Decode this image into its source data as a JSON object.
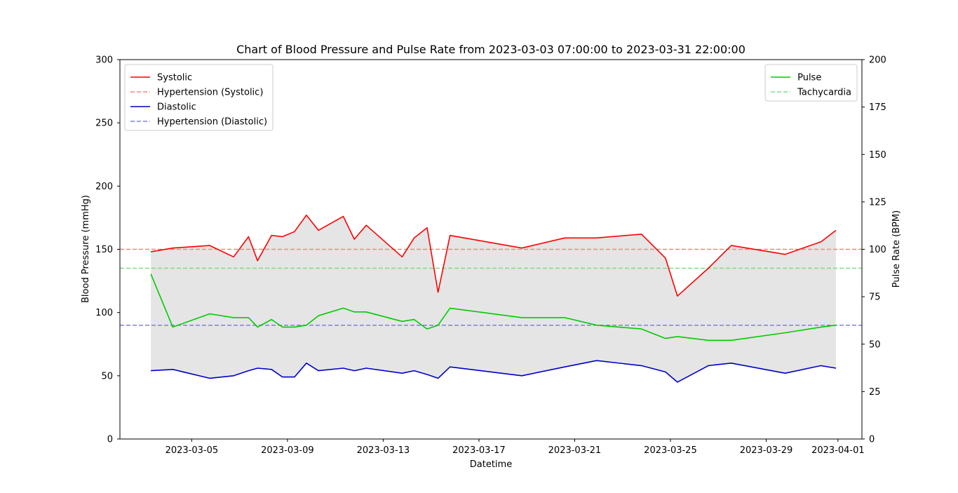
{
  "chart_data": {
    "type": "line",
    "title": "Chart of Blood Pressure and Pulse Rate from 2023-03-03 07:00:00 to 2023-03-31 22:00:00",
    "xlabel": "Datetime",
    "ylabel_left": "Blood Pressure (mmHg)",
    "ylabel_right": "Pulse Rate (BPM)",
    "x_range": [
      "2023-03-02T00:00",
      "2023-04-02T00:00"
    ],
    "y_left_lim": [
      0,
      300
    ],
    "y_right_lim": [
      0,
      200
    ],
    "x_tick_labels": [
      "2023-03-05",
      "2023-03-09",
      "2023-03-13",
      "2023-03-17",
      "2023-03-21",
      "2023-03-25",
      "2023-03-29",
      "2023-04-01"
    ],
    "y_left_ticks": [
      0,
      50,
      100,
      150,
      200,
      250,
      300
    ],
    "y_right_ticks": [
      0,
      25,
      50,
      75,
      100,
      125,
      150,
      175,
      200
    ],
    "grid": false,
    "fill_between": {
      "upper": "Systolic",
      "lower": "Diastolic",
      "color": "#e5e5e5"
    },
    "x": [
      "2023-03-03T07:00",
      "2023-03-04T05:00",
      "2023-03-05T18:00",
      "2023-03-06T18:00",
      "2023-03-07T09:00",
      "2023-03-07T18:00",
      "2023-03-08T08:00",
      "2023-03-08T19:00",
      "2023-03-09T07:00",
      "2023-03-09T19:00",
      "2023-03-10T07:00",
      "2023-03-11T08:00",
      "2023-03-11T19:00",
      "2023-03-12T07:00",
      "2023-03-13T19:00",
      "2023-03-14T07:00",
      "2023-03-14T20:00",
      "2023-03-15T07:00",
      "2023-03-15T19:00",
      "2023-03-18T19:00",
      "2023-03-20T14:00",
      "2023-03-21T22:00",
      "2023-03-23T19:00",
      "2023-03-24T19:00",
      "2023-03-25T07:00",
      "2023-03-26T14:00",
      "2023-03-27T13:00",
      "2023-03-29T19:00",
      "2023-03-31T07:00",
      "2023-03-31T22:00"
    ],
    "series": [
      {
        "name": "Systolic",
        "axis": "left",
        "color": "#ff0000",
        "style": "solid",
        "values": [
          148,
          151,
          153,
          144,
          160,
          141,
          161,
          160,
          164,
          177,
          165,
          176,
          158,
          169,
          144,
          159,
          167,
          116,
          161,
          151,
          159,
          159,
          162,
          143,
          113,
          135,
          153,
          146,
          156,
          165
        ]
      },
      {
        "name": "Diastolic",
        "axis": "left",
        "color": "#0000cc",
        "style": "solid",
        "values": [
          54,
          55,
          48,
          50,
          54,
          56,
          55,
          49,
          49,
          60,
          54,
          56,
          54,
          56,
          52,
          54,
          51,
          48,
          57,
          50,
          57,
          62,
          58,
          53,
          45,
          58,
          60,
          52,
          58,
          56
        ]
      },
      {
        "name": "Pulse",
        "axis": "right",
        "color": "#00cc00",
        "style": "solid",
        "values": [
          87,
          59,
          66,
          64,
          64,
          59,
          63,
          59,
          59,
          60,
          65,
          69,
          67,
          67,
          62,
          63,
          58,
          60,
          69,
          64,
          64,
          60,
          58,
          53,
          54,
          52,
          52,
          56,
          59,
          60
        ]
      }
    ],
    "reference_lines": [
      {
        "name": "Hypertension (Systolic)",
        "axis": "left",
        "value": 150,
        "color": "#ff8080",
        "style": "dashed"
      },
      {
        "name": "Hypertension (Diastolic)",
        "axis": "left",
        "value": 90,
        "color": "#8080dd",
        "style": "dashed"
      },
      {
        "name": "Tachycardia",
        "axis": "right",
        "value": 90,
        "color": "#80dd80",
        "style": "dashed"
      }
    ],
    "legends": [
      {
        "placement": "upper-left",
        "entries": [
          {
            "label": "Systolic",
            "color": "#ff0000",
            "style": "solid"
          },
          {
            "label": "Hypertension (Systolic)",
            "color": "#ff8080",
            "style": "dashed"
          },
          {
            "label": "Diastolic",
            "color": "#0000cc",
            "style": "solid"
          },
          {
            "label": "Hypertension (Diastolic)",
            "color": "#8080dd",
            "style": "dashed"
          }
        ]
      },
      {
        "placement": "upper-right",
        "entries": [
          {
            "label": "Pulse",
            "color": "#00cc00",
            "style": "solid"
          },
          {
            "label": "Tachycardia",
            "color": "#80dd80",
            "style": "dashed"
          }
        ]
      }
    ]
  }
}
